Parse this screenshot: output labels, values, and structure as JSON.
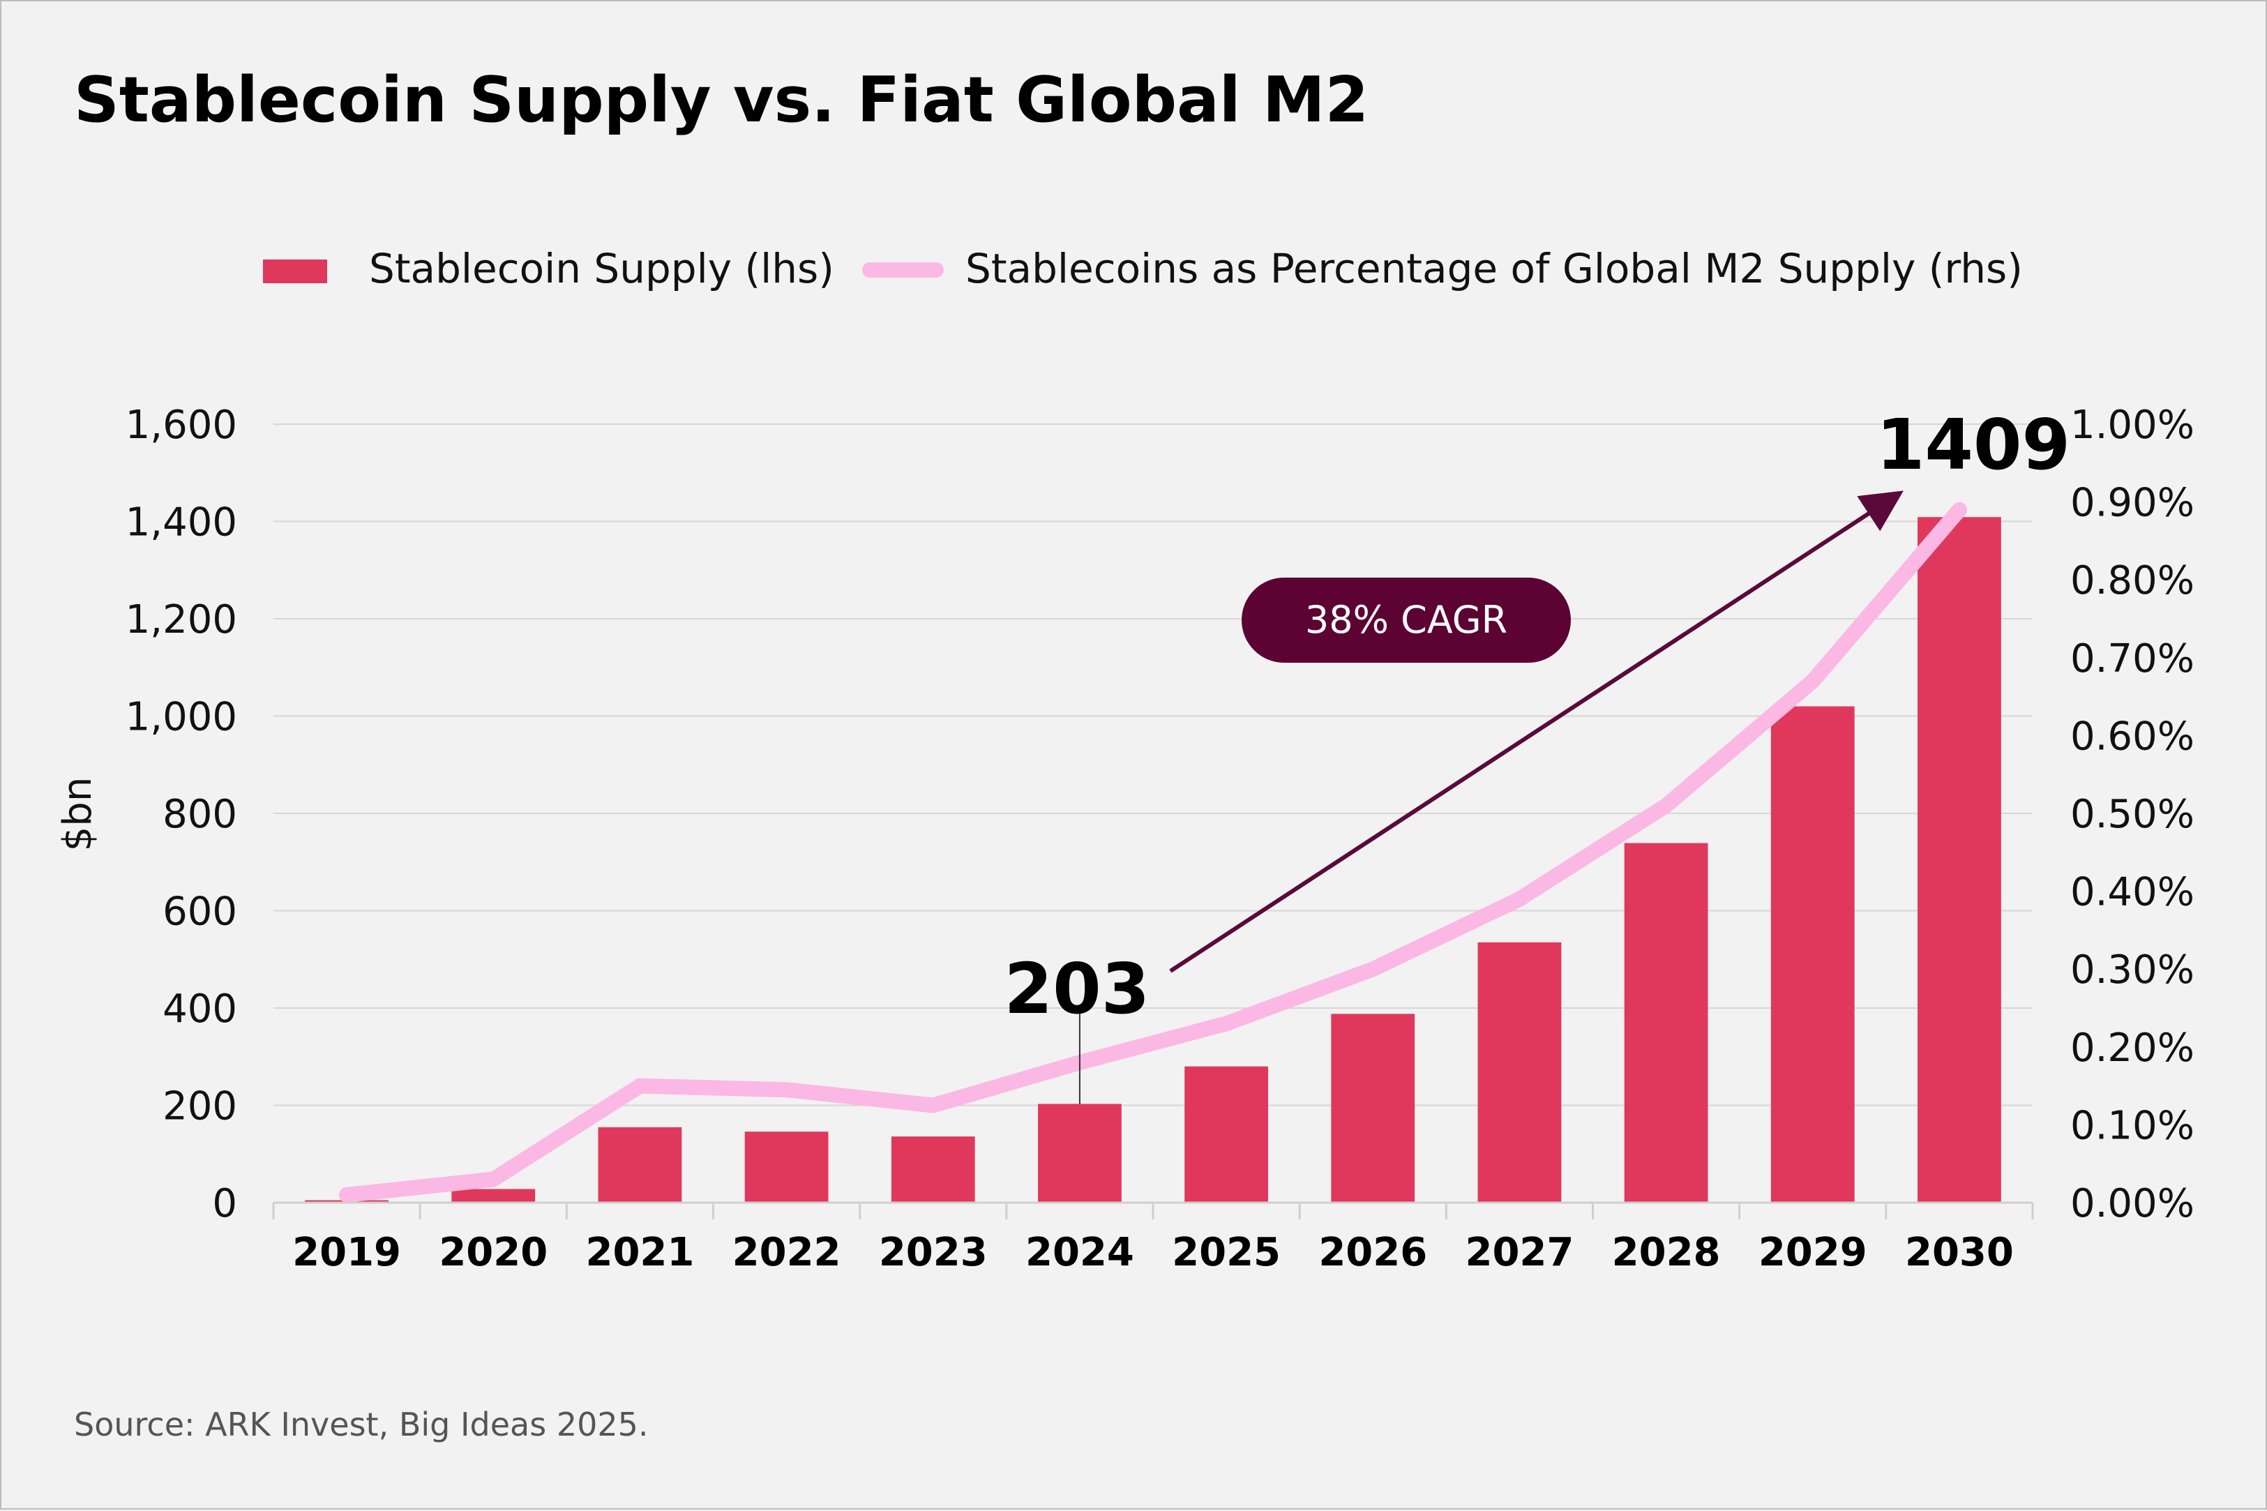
{
  "chart_data": {
    "type": "bar",
    "title": "Stablecoin Supply vs. Fiat Global M2",
    "categories": [
      "2019",
      "2020",
      "2021",
      "2022",
      "2023",
      "2024",
      "2025",
      "2026",
      "2027",
      "2028",
      "2029",
      "2030"
    ],
    "series": [
      {
        "name": "Stablecoin Supply (lhs)",
        "type": "bar",
        "axis": "left",
        "color": "#e0385c",
        "values": [
          5,
          28,
          155,
          146,
          136,
          203,
          280,
          388,
          535,
          739,
          1020,
          1409
        ]
      },
      {
        "name": "Stablecoins as Percentage of Global M2 Supply (rhs)",
        "type": "line",
        "axis": "right",
        "color": "#fbb8e4",
        "values": [
          0.0001,
          0.0003,
          0.0015,
          0.00145,
          0.00125,
          0.0018,
          0.0023,
          0.003,
          0.0039,
          0.0051,
          0.0067,
          0.0089
        ]
      }
    ],
    "ylabel": "$bn",
    "ylim": [
      0,
      1600
    ],
    "yticks": [
      "0",
      "200",
      "400",
      "600",
      "800",
      "1,000",
      "1,200",
      "1,400",
      "1,600"
    ],
    "y2lim": [
      0,
      0.01
    ],
    "y2ticks": [
      "0.00%",
      "0.10%",
      "0.20%",
      "0.30%",
      "0.40%",
      "0.50%",
      "0.60%",
      "0.70%",
      "0.80%",
      "0.90%",
      "1.00%"
    ],
    "grid": true,
    "legend_position": "top",
    "annotations": {
      "start_label": "203",
      "end_label": "1409",
      "cagr_label": "38% CAGR",
      "arrow_color": "#5a0a3a",
      "badge_color": "#5c0333"
    },
    "source": "Source: ARK Invest, Big Ideas 2025."
  }
}
